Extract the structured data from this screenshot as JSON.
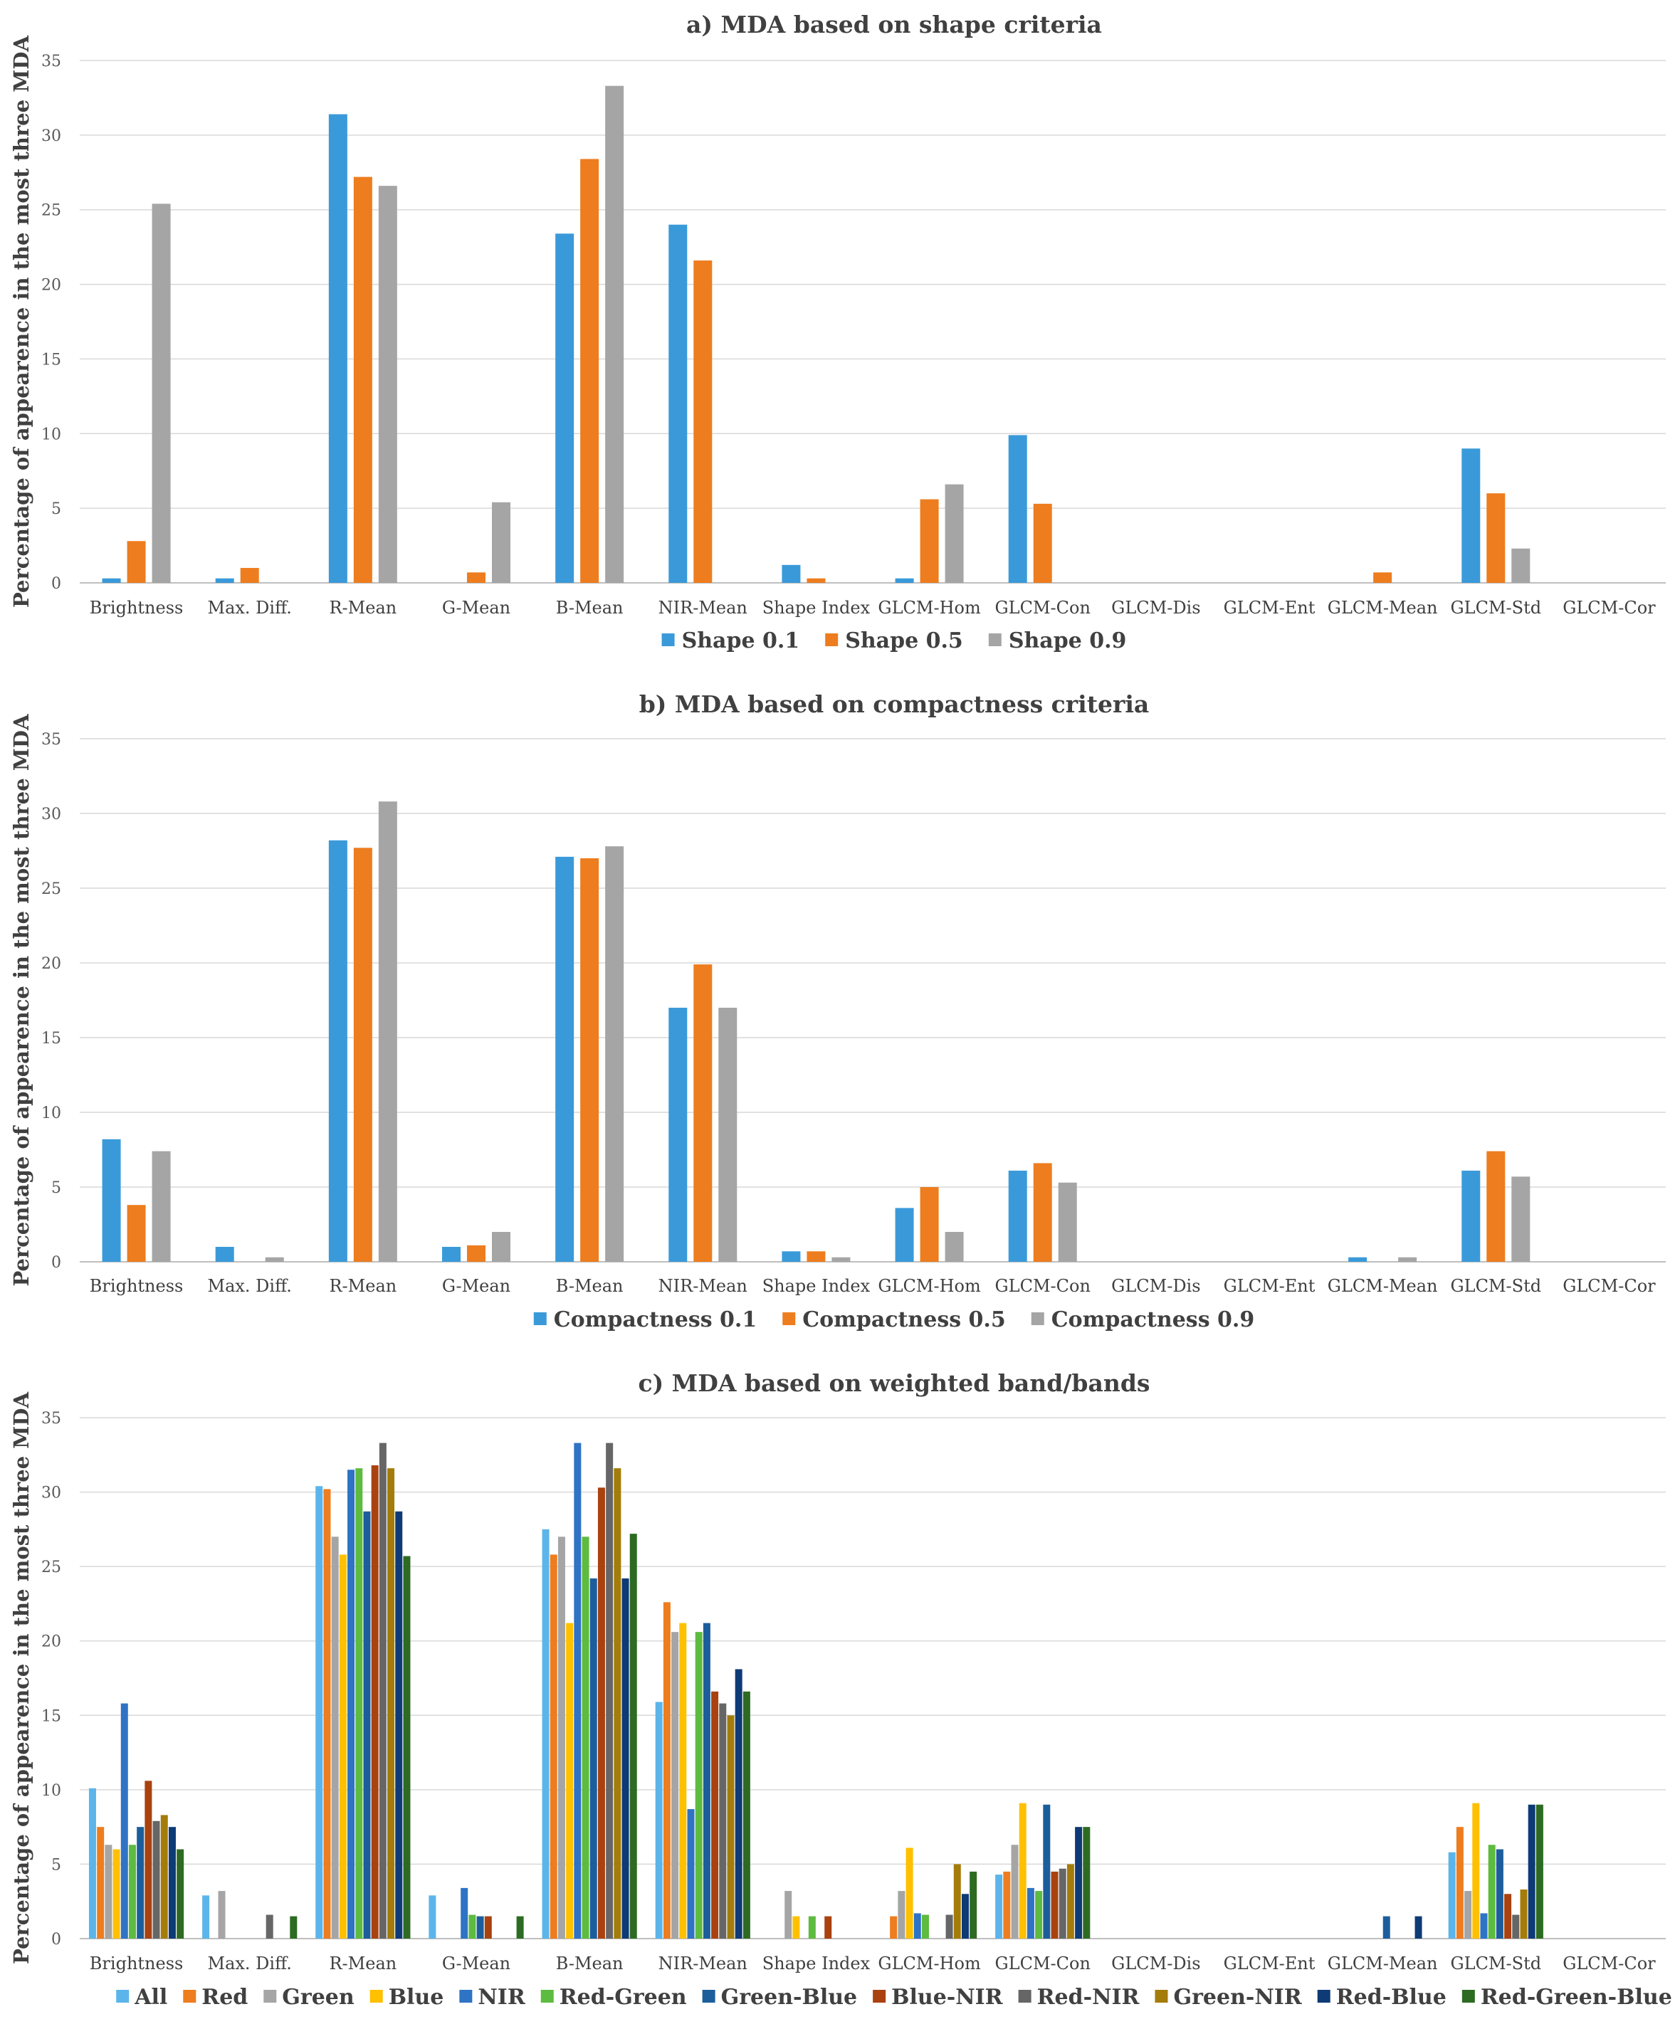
{
  "chart_data": [
    {
      "type": "bar",
      "title": "a) MDA based on shape criteria",
      "ylabel": "Percentage of appearence in the most three MDA",
      "xlabel": "",
      "ylim": [
        0,
        35
      ],
      "yticks": [
        0,
        5,
        10,
        15,
        20,
        25,
        30,
        35
      ],
      "grid": true,
      "legend_position": "bottom",
      "categories": [
        "Brightness",
        "Max. Diff.",
        "R-Mean",
        "G-Mean",
        "B-Mean",
        "NIR-Mean",
        "Shape Index",
        "GLCM-Hom",
        "GLCM-Con",
        "GLCM-Dis",
        "GLCM-Ent",
        "GLCM-Mean",
        "GLCM-Std",
        "GLCM-Cor"
      ],
      "series": [
        {
          "name": "Shape 0.1",
          "color": "#3A9AD9",
          "values": [
            0.3,
            0.3,
            31.4,
            0,
            23.4,
            24.0,
            1.2,
            0.3,
            9.9,
            0,
            0,
            0,
            9.0,
            0
          ]
        },
        {
          "name": "Shape 0.5",
          "color": "#ED7D1F",
          "values": [
            2.8,
            1.0,
            27.2,
            0.7,
            28.4,
            21.6,
            0.3,
            5.6,
            5.3,
            0,
            0,
            0.7,
            6.0,
            0
          ]
        },
        {
          "name": "Shape 0.9",
          "color": "#A5A5A5",
          "values": [
            25.4,
            0,
            26.6,
            5.4,
            33.3,
            0,
            0,
            6.6,
            0,
            0,
            0,
            0,
            2.3,
            0
          ]
        }
      ]
    },
    {
      "type": "bar",
      "title": "b) MDA based on compactness criteria",
      "ylabel": "Percentage of appearence in the most three MDA",
      "xlabel": "",
      "ylim": [
        0,
        35
      ],
      "yticks": [
        0,
        5,
        10,
        15,
        20,
        25,
        30,
        35
      ],
      "grid": true,
      "legend_position": "bottom",
      "categories": [
        "Brightness",
        "Max. Diff.",
        "R-Mean",
        "G-Mean",
        "B-Mean",
        "NIR-Mean",
        "Shape Index",
        "GLCM-Hom",
        "GLCM-Con",
        "GLCM-Dis",
        "GLCM-Ent",
        "GLCM-Mean",
        "GLCM-Std",
        "GLCM-Cor"
      ],
      "series": [
        {
          "name": "Compactness 0.1",
          "color": "#3A9AD9",
          "values": [
            8.2,
            1.0,
            28.2,
            1.0,
            27.1,
            17.0,
            0.7,
            3.6,
            6.1,
            0,
            0,
            0.3,
            6.1,
            0
          ]
        },
        {
          "name": "Compactness 0.5",
          "color": "#ED7D1F",
          "values": [
            3.8,
            0,
            27.7,
            1.1,
            27.0,
            19.9,
            0.7,
            5.0,
            6.6,
            0,
            0,
            0,
            7.4,
            0
          ]
        },
        {
          "name": "Compactness 0.9",
          "color": "#A5A5A5",
          "values": [
            7.4,
            0.3,
            30.8,
            2.0,
            27.8,
            17.0,
            0.3,
            2.0,
            5.3,
            0,
            0,
            0.3,
            5.7,
            0
          ]
        }
      ]
    },
    {
      "type": "bar",
      "title": "c) MDA based on weighted band/bands",
      "ylabel": "Percentage of appearence in the most three MDA",
      "xlabel": "",
      "ylim": [
        0,
        35
      ],
      "yticks": [
        0,
        5,
        10,
        15,
        20,
        25,
        30,
        35
      ],
      "grid": true,
      "legend_position": "bottom",
      "categories": [
        "Brightness",
        "Max. Diff.",
        "R-Mean",
        "G-Mean",
        "B-Mean",
        "NIR-Mean",
        "Shape Index",
        "GLCM-Hom",
        "GLCM-Con",
        "GLCM-Dis",
        "GLCM-Ent",
        "GLCM-Mean",
        "GLCM-Std",
        "GLCM-Cor"
      ],
      "series": [
        {
          "name": "All",
          "color": "#5BB5EA",
          "values": [
            10.1,
            2.9,
            30.4,
            2.9,
            27.5,
            15.9,
            0,
            0,
            4.3,
            0,
            0,
            0,
            5.8,
            0
          ]
        },
        {
          "name": "Red",
          "color": "#ED7D1F",
          "values": [
            7.5,
            0,
            30.2,
            0,
            25.8,
            22.6,
            0,
            1.5,
            4.5,
            0,
            0,
            0,
            7.5,
            0
          ]
        },
        {
          "name": "Green",
          "color": "#A5A5A5",
          "values": [
            6.3,
            3.2,
            27.0,
            0,
            27.0,
            20.6,
            3.2,
            3.2,
            6.3,
            0,
            0,
            0,
            3.2,
            0
          ]
        },
        {
          "name": "Blue",
          "color": "#FFC000",
          "values": [
            6.0,
            0,
            25.8,
            0,
            21.2,
            21.2,
            1.5,
            6.1,
            9.1,
            0,
            0,
            0,
            9.1,
            0
          ]
        },
        {
          "name": "NIR",
          "color": "#2E73C4",
          "values": [
            15.8,
            0,
            31.5,
            3.4,
            33.3,
            8.7,
            0,
            1.7,
            3.4,
            0,
            0,
            0,
            1.7,
            0
          ]
        },
        {
          "name": "Red-Green",
          "color": "#5DBB3F",
          "values": [
            6.3,
            0,
            31.6,
            1.6,
            27.0,
            20.6,
            1.5,
            1.6,
            3.2,
            0,
            0,
            0,
            6.3,
            0
          ]
        },
        {
          "name": "Green-Blue",
          "color": "#1C5E9C",
          "values": [
            7.5,
            0,
            28.7,
            1.5,
            24.2,
            21.2,
            0,
            0,
            9.0,
            0,
            0,
            1.5,
            6.0,
            0
          ]
        },
        {
          "name": "Blue-NIR",
          "color": "#A9420F",
          "values": [
            10.6,
            0,
            31.8,
            1.5,
            30.3,
            16.6,
            1.5,
            0,
            4.5,
            0,
            0,
            0,
            3.0,
            0
          ]
        },
        {
          "name": "Red-NIR",
          "color": "#666666",
          "values": [
            7.9,
            1.6,
            33.3,
            0,
            33.3,
            15.8,
            0,
            1.6,
            4.7,
            0,
            0,
            0,
            1.6,
            0
          ]
        },
        {
          "name": "Green-NIR",
          "color": "#A47C0A",
          "values": [
            8.3,
            0,
            31.6,
            0,
            31.6,
            15.0,
            0,
            5.0,
            5.0,
            0,
            0,
            0,
            3.3,
            0
          ]
        },
        {
          "name": "Red-Blue",
          "color": "#0E3A76",
          "values": [
            7.5,
            0,
            28.7,
            0,
            24.2,
            18.1,
            0,
            3.0,
            7.5,
            0,
            0,
            1.5,
            9.0,
            0
          ]
        },
        {
          "name": "Red-Green-Blue",
          "color": "#2D6B22",
          "values": [
            6.0,
            1.5,
            25.7,
            1.5,
            27.2,
            16.6,
            0,
            4.5,
            7.5,
            0,
            0,
            0,
            9.0,
            0
          ]
        }
      ]
    }
  ]
}
